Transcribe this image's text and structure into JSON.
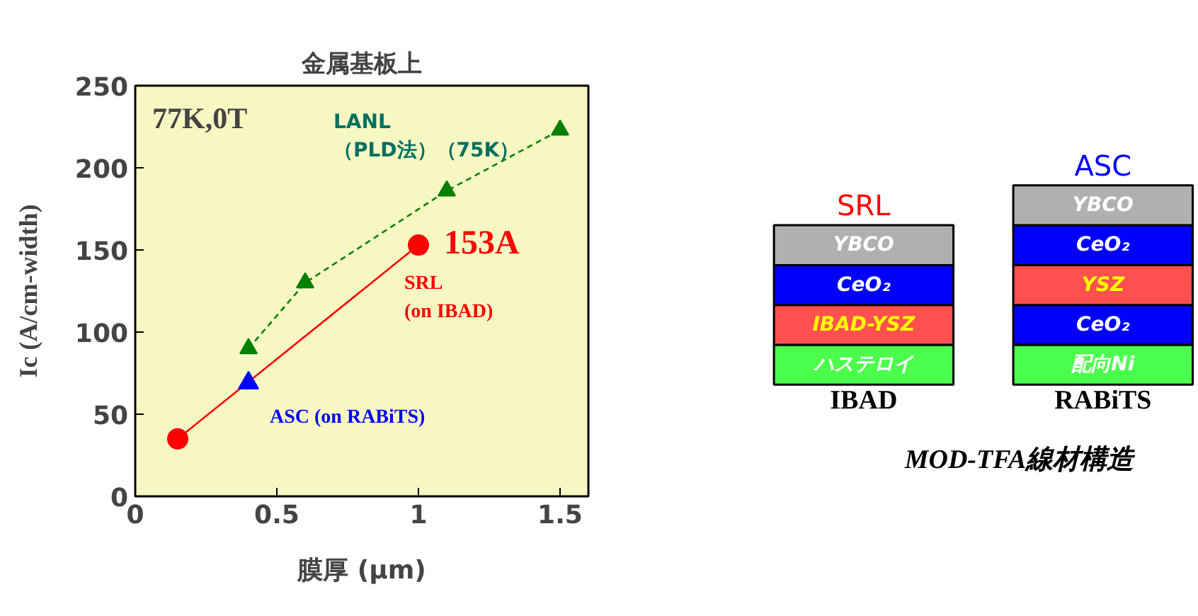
{
  "chart_data": [
    {
      "type": "line",
      "title": "金属基板上",
      "xlabel": "膜厚 (μm)",
      "ylabel": "Ic (A/cm-width)",
      "xlim": [
        0,
        1.6
      ],
      "xticks": [
        0,
        0.5,
        1,
        1.5
      ],
      "ylim": [
        0,
        250
      ],
      "yticks": [
        0,
        50,
        100,
        150,
        200,
        250
      ],
      "grid": false,
      "series": [
        {
          "name": "LANL\n（PLD法）（75K）",
          "color": "#008000",
          "x": [
            0.4,
            0.6,
            1.1,
            1.5
          ],
          "values": [
            90,
            130,
            186,
            223
          ],
          "line_style": "dashed",
          "marker": "triangle"
        },
        {
          "name": "SRL\n(on IBAD)",
          "color": "#ff0000",
          "x": [
            0.15,
            1.0
          ],
          "values": [
            35,
            153
          ],
          "line_style": "solid",
          "marker": "circle"
        },
        {
          "name": "ASC (on RABiTS)",
          "type": "scatter",
          "color": "#0000ff",
          "x": [
            0.4
          ],
          "values": [
            69
          ],
          "marker": "triangle"
        }
      ],
      "annotations": [
        "77K,0T",
        {
          "text": "153A",
          "x": 1.0,
          "y": 153
        }
      ]
    },
    {
      "type": "other",
      "categories": [
        "IBAD",
        "RABiTS"
      ],
      "totals": [
        "SRL",
        "ASC"
      ],
      "colors": [
        "#4dff4d",
        "#ff5050",
        "#0000ff",
        "#b0b0b0",
        "#4dff4d",
        "#0000ff",
        "#ff5050",
        "#0000ff",
        "#b0b0b0"
      ],
      "annotations": [
        {
          "text": "ハステロイ",
          "x": "IBAD"
        },
        {
          "text": "IBAD-YSZ",
          "x": "IBAD"
        },
        {
          "text": "CeO₂",
          "x": "IBAD"
        },
        {
          "text": "YBCO",
          "x": "IBAD"
        },
        {
          "text": "配向Ni",
          "x": "RABiTS"
        },
        {
          "text": "CeO₂",
          "x": "RABiTS"
        },
        {
          "text": "YSZ",
          "x": "RABiTS"
        },
        {
          "text": "CeO₂",
          "x": "RABiTS"
        },
        {
          "text": "YBCO",
          "x": "RABiTS"
        },
        "MOD-TFA線材構造"
      ]
    }
  ]
}
